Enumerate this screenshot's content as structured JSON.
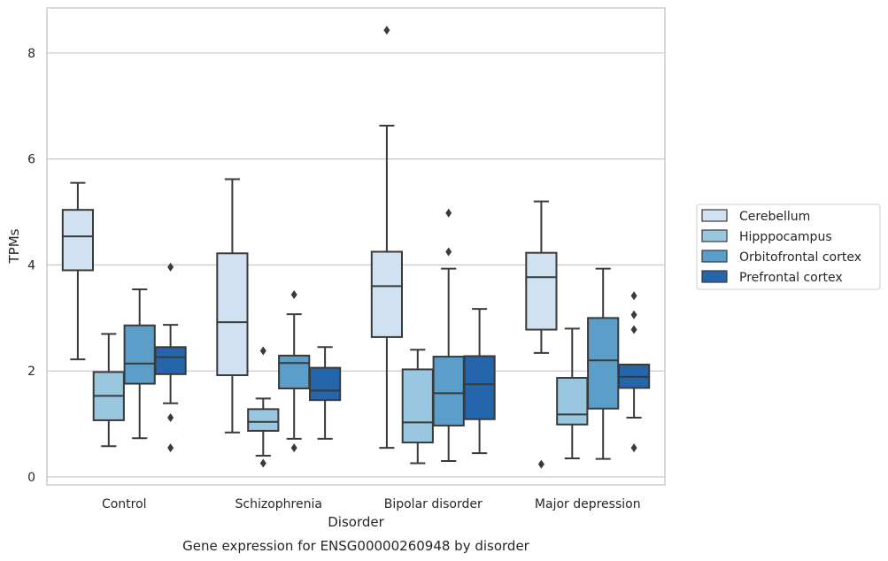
{
  "chart_data": {
    "type": "box",
    "caption": "Gene expression for ENSG00000260948 by disorder",
    "xlabel": "Disorder",
    "ylabel": "TPMs",
    "ylim": [
      -0.15,
      8.85
    ],
    "yticks": [
      0,
      2,
      4,
      6,
      8
    ],
    "grid": "horizontal",
    "legend_position": "right",
    "categories": [
      "Control",
      "Schizophrenia",
      "Bipolar disorder",
      "Major depression"
    ],
    "series": [
      {
        "name": "Cerebellum",
        "color": "#d0e2f2",
        "boxes": [
          {
            "whisker_low": 2.22,
            "q1": 3.9,
            "median": 4.54,
            "q3": 5.04,
            "whisker_high": 5.55,
            "outliers": []
          },
          {
            "whisker_low": 0.84,
            "q1": 1.92,
            "median": 2.92,
            "q3": 4.22,
            "whisker_high": 5.62,
            "outliers": []
          },
          {
            "whisker_low": 0.55,
            "q1": 2.64,
            "median": 3.6,
            "q3": 4.25,
            "whisker_high": 6.63,
            "outliers": [
              8.43
            ]
          },
          {
            "whisker_low": 2.34,
            "q1": 2.78,
            "median": 3.77,
            "q3": 4.23,
            "whisker_high": 5.2,
            "outliers": [
              0.24
            ]
          }
        ]
      },
      {
        "name": "Hipppocampus",
        "color": "#9ac7e0",
        "boxes": [
          {
            "whisker_low": 0.58,
            "q1": 1.07,
            "median": 1.53,
            "q3": 1.98,
            "whisker_high": 2.7,
            "outliers": []
          },
          {
            "whisker_low": 0.4,
            "q1": 0.87,
            "median": 1.04,
            "q3": 1.28,
            "whisker_high": 1.48,
            "outliers": [
              0.26,
              2.38
            ]
          },
          {
            "whisker_low": 0.26,
            "q1": 0.65,
            "median": 1.03,
            "q3": 2.03,
            "whisker_high": 2.4,
            "outliers": []
          },
          {
            "whisker_low": 0.35,
            "q1": 0.99,
            "median": 1.18,
            "q3": 1.87,
            "whisker_high": 2.8,
            "outliers": []
          }
        ]
      },
      {
        "name": "Orbitofrontal cortex",
        "color": "#5a9ec9",
        "boxes": [
          {
            "whisker_low": 0.73,
            "q1": 1.76,
            "median": 2.14,
            "q3": 2.86,
            "whisker_high": 3.54,
            "outliers": []
          },
          {
            "whisker_low": 0.72,
            "q1": 1.67,
            "median": 2.15,
            "q3": 2.29,
            "whisker_high": 3.07,
            "outliers": [
              0.55,
              3.44
            ]
          },
          {
            "whisker_low": 0.3,
            "q1": 0.97,
            "median": 1.58,
            "q3": 2.27,
            "whisker_high": 3.93,
            "outliers": [
              4.25,
              4.98
            ]
          },
          {
            "whisker_low": 0.34,
            "q1": 1.29,
            "median": 2.2,
            "q3": 3.0,
            "whisker_high": 3.93,
            "outliers": []
          }
        ]
      },
      {
        "name": "Prefrontal cortex",
        "color": "#2565ab",
        "boxes": [
          {
            "whisker_low": 1.39,
            "q1": 1.94,
            "median": 2.26,
            "q3": 2.45,
            "whisker_high": 2.87,
            "outliers": [
              0.55,
              1.12,
              3.96
            ]
          },
          {
            "whisker_low": 0.72,
            "q1": 1.45,
            "median": 1.63,
            "q3": 2.06,
            "whisker_high": 2.45,
            "outliers": []
          },
          {
            "whisker_low": 0.45,
            "q1": 1.09,
            "median": 1.75,
            "q3": 2.28,
            "whisker_high": 3.17,
            "outliers": []
          },
          {
            "whisker_low": 1.12,
            "q1": 1.68,
            "median": 1.89,
            "q3": 2.12,
            "whisker_high": 2.12,
            "outliers": [
              0.55,
              2.78,
              3.06,
              3.42
            ]
          }
        ]
      }
    ]
  }
}
